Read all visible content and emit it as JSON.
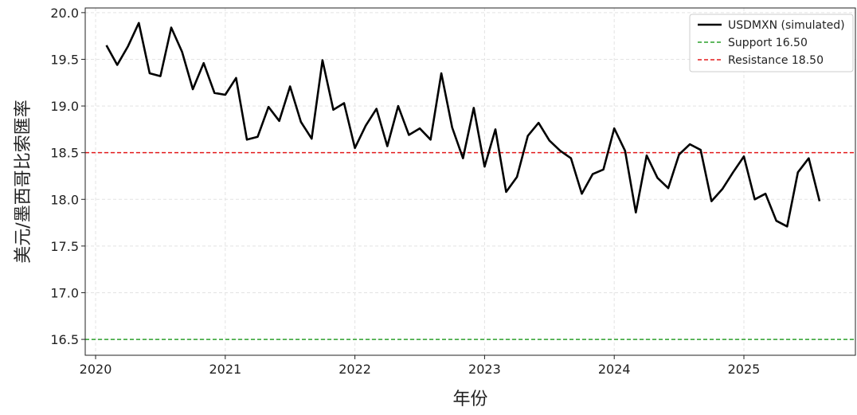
{
  "chart_data": {
    "type": "line",
    "title": "",
    "xlabel": "年份",
    "ylabel": "美元/墨西哥比索匯率",
    "xlim": [
      2019.92,
      2025.86
    ],
    "ylim": [
      16.33,
      20.05
    ],
    "grid": true,
    "legend_position": "top-right",
    "x_ticks": [
      {
        "value": 2020,
        "label": "2020"
      },
      {
        "value": 2021,
        "label": "2021"
      },
      {
        "value": 2022,
        "label": "2022"
      },
      {
        "value": 2023,
        "label": "2023"
      },
      {
        "value": 2024,
        "label": "2024"
      },
      {
        "value": 2025,
        "label": "2025"
      }
    ],
    "y_ticks": [
      {
        "value": 16.5,
        "label": "16.5"
      },
      {
        "value": 17.0,
        "label": "17.0"
      },
      {
        "value": 17.5,
        "label": "17.5"
      },
      {
        "value": 18.0,
        "label": "18.0"
      },
      {
        "value": 18.5,
        "label": "18.5"
      },
      {
        "value": 19.0,
        "label": "19.0"
      },
      {
        "value": 19.5,
        "label": "19.5"
      },
      {
        "value": 20.0,
        "label": "20.0"
      }
    ],
    "series": [
      {
        "name": "USDMXN (simulated)",
        "color": "#000000",
        "style": "solid",
        "x_start": "2020-02",
        "x_step": "1 month",
        "values": [
          19.65,
          19.44,
          19.64,
          19.89,
          19.35,
          19.32,
          19.84,
          19.58,
          19.18,
          19.46,
          19.14,
          19.12,
          19.3,
          18.64,
          18.67,
          18.99,
          18.84,
          19.21,
          18.83,
          18.65,
          19.49,
          18.96,
          19.03,
          18.55,
          18.79,
          18.97,
          18.57,
          19.0,
          18.69,
          18.76,
          18.64,
          19.35,
          18.77,
          18.44,
          18.98,
          18.35,
          18.75,
          18.08,
          18.24,
          18.68,
          18.82,
          18.63,
          18.52,
          18.44,
          18.06,
          18.27,
          18.32,
          18.76,
          18.52,
          17.86,
          18.47,
          18.23,
          18.12,
          18.48,
          18.59,
          18.53,
          17.98,
          18.11,
          18.29,
          18.46,
          18.0,
          18.06,
          17.77,
          17.71,
          18.29,
          18.44,
          17.98
        ]
      },
      {
        "name": "Support 16.50",
        "color": "#2ca02c",
        "style": "dashed",
        "constant": 16.5
      },
      {
        "name": "Resistance 18.50",
        "color": "#e31a1c",
        "style": "dashed",
        "constant": 18.5
      }
    ]
  }
}
